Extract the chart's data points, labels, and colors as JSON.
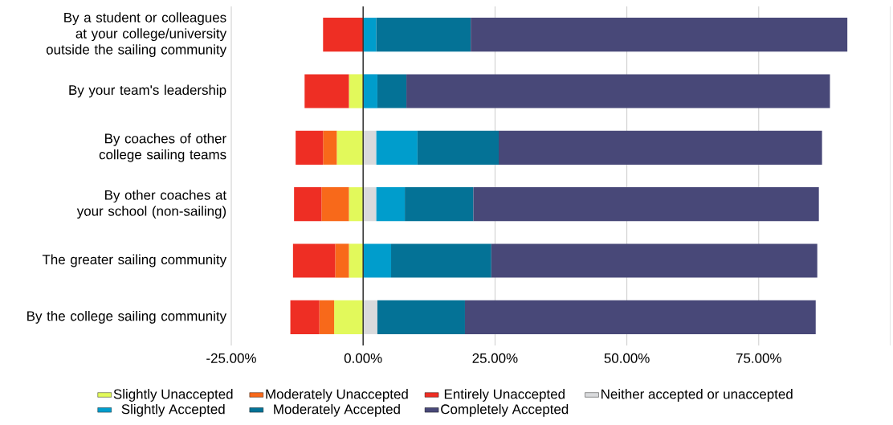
{
  "chart_data": {
    "type": "bar",
    "orientation": "horizontal",
    "stacked": true,
    "categories": [
      "By a student or colleagues at your college/university outside the sailing community",
      "By your team's leadership",
      "By coaches of other college sailing teams",
      "By other coaches at your school (non-sailing)",
      "The greater sailing community",
      "By the college sailing community"
    ],
    "series": [
      {
        "name": "Slightly Unaccepted",
        "color": "#e2f95b",
        "values": [
          0,
          -2.7,
          -5.0,
          -2.7,
          -2.7,
          -5.5
        ]
      },
      {
        "name": "Moderately Unaccepted",
        "color": "#f8691a",
        "values": [
          0,
          0,
          -2.6,
          -5.2,
          -2.6,
          -2.8
        ]
      },
      {
        "name": "Entirely Unaccepted",
        "color": "#ee2e24",
        "values": [
          -7.6,
          -8.4,
          -5.2,
          -5.2,
          -8.0,
          -5.5
        ]
      },
      {
        "name": "Neither accepted or unaccepted",
        "color": "#d9dadc",
        "values": [
          0,
          0,
          2.5,
          2.5,
          0,
          2.7
        ]
      },
      {
        "name": "Slightly Accepted",
        "color": "#009dcc",
        "values": [
          2.5,
          2.7,
          7.8,
          5.4,
          5.3,
          0
        ]
      },
      {
        "name": "Moderately Accepted",
        "color": "#047296",
        "values": [
          17.9,
          5.5,
          15.4,
          13.0,
          19.0,
          16.6
        ]
      },
      {
        "name": "Completely Accepted",
        "color": "#484878",
        "values": [
          71.4,
          80.3,
          61.3,
          65.5,
          61.8,
          66.5
        ]
      }
    ],
    "xlim": [
      -25,
      100
    ],
    "xticks": [
      {
        "value": -25,
        "label": "-25.00%"
      },
      {
        "value": 0,
        "label": "0.00%"
      },
      {
        "value": 25,
        "label": "25.00%"
      },
      {
        "value": 50,
        "label": "50.00%"
      },
      {
        "value": 75,
        "label": "75.00%"
      }
    ],
    "ref_lines": [
      {
        "axis": "x",
        "value": 0,
        "color": "#333333"
      }
    ],
    "grid": "x",
    "legend": "bottom"
  }
}
